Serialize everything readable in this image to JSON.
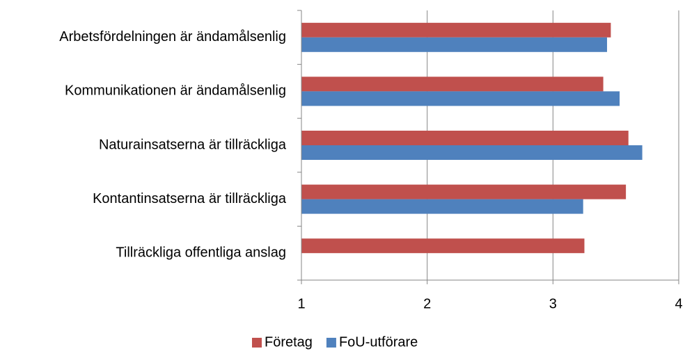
{
  "chart_data": {
    "type": "hbar",
    "categories": [
      "Arbetsfördelningen är ändamålsenlig",
      "Kommunikationen är ändamålsenlig",
      "Naturainsatserna är tillräckliga",
      "Kontantinsatserna är tillräckliga",
      "Tillräckliga offentliga anslag"
    ],
    "series": [
      {
        "name": "Företag",
        "color": "#c0504d",
        "values": [
          3.46,
          3.4,
          3.6,
          3.58,
          3.25
        ]
      },
      {
        "name": "FoU-utförare",
        "color": "#4f81bd",
        "values": [
          3.43,
          3.53,
          3.71,
          3.24,
          null
        ]
      }
    ],
    "xlim": [
      1,
      4
    ],
    "xticks": [
      1,
      2,
      3,
      4
    ],
    "grid": true,
    "legend": "bottom"
  }
}
